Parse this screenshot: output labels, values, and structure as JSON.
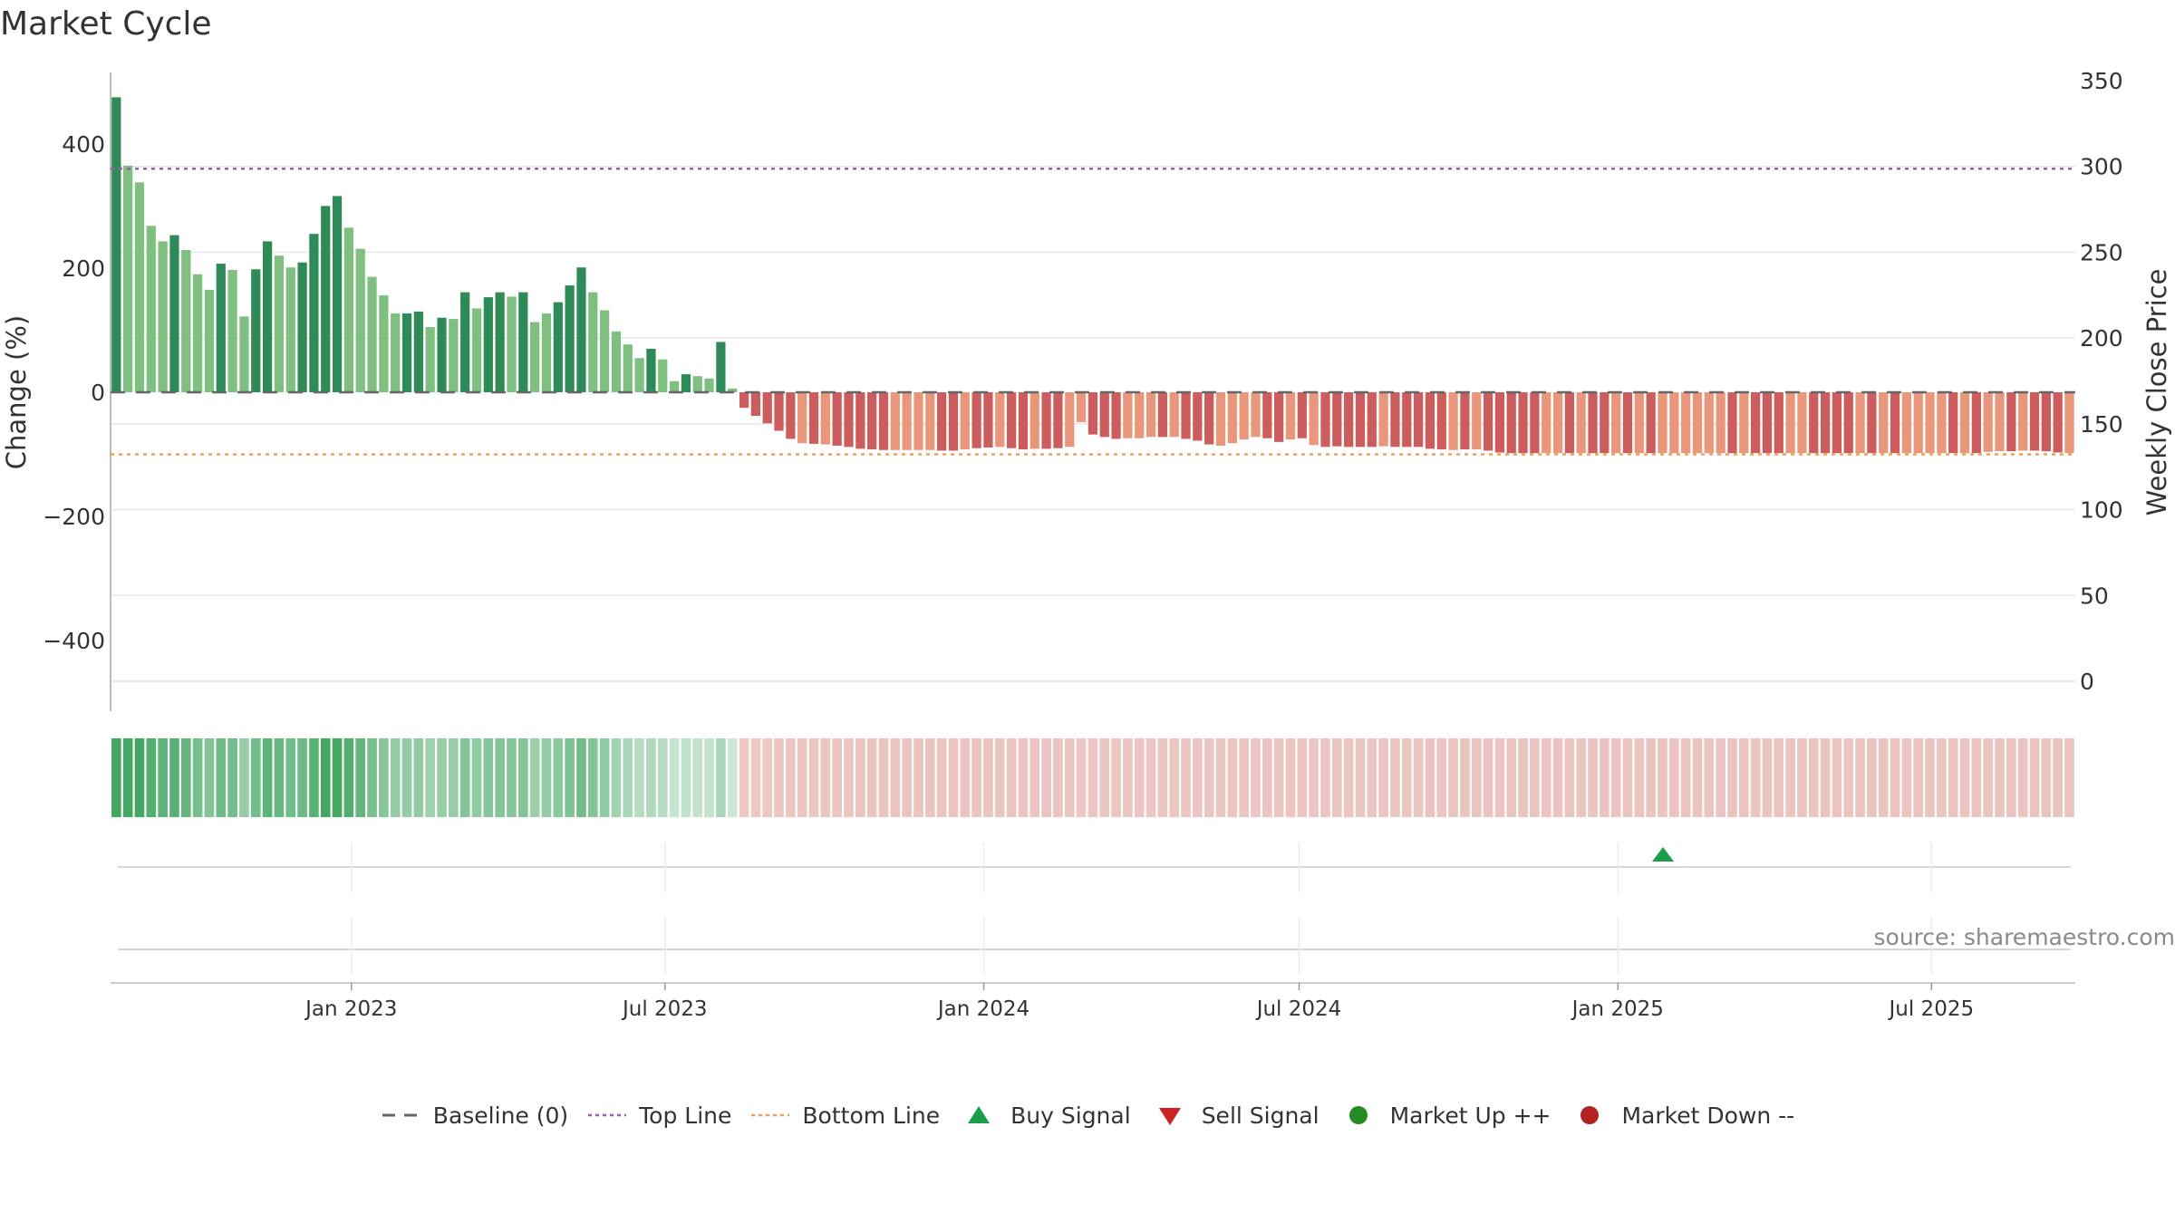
{
  "title": "Market Cycle",
  "source_note": "source: sharemaestro.com",
  "colors": {
    "strong_up": "#2e8b57",
    "up": "#7fbf7f",
    "strong_down": "#cd5c5c",
    "down": "#e9967a",
    "top_line": "#9b59b6",
    "bottom_line": "#f0a050",
    "baseline": "#666666",
    "buy": "#1a9e4a",
    "sell": "#cc2222",
    "market_up": "#228b22",
    "market_down": "#b22222"
  },
  "legend": [
    {
      "key": "baseline",
      "label": "Baseline (0)",
      "icon": "dash-line"
    },
    {
      "key": "top",
      "label": "Top Line",
      "icon": "dotted-purple-line"
    },
    {
      "key": "bottom",
      "label": "Bottom Line",
      "icon": "dotted-orange-line"
    },
    {
      "key": "buy",
      "label": "Buy Signal",
      "icon": "triangle-up"
    },
    {
      "key": "sell",
      "label": "Sell Signal",
      "icon": "triangle-down"
    },
    {
      "key": "mup",
      "label": "Market Up ++",
      "icon": "green-dot"
    },
    {
      "key": "mdown",
      "label": "Market Down --",
      "icon": "red-dot"
    }
  ],
  "chart_data": {
    "type": "bar",
    "title": "Market Cycle",
    "ylabel_left": "Change (%)",
    "ylabel_right": "Weekly Close Price",
    "ylim_left": [
      -520,
      520
    ],
    "ylim_right": [
      0,
      350
    ],
    "yticks_left": [
      400,
      200,
      0,
      -200,
      -400
    ],
    "yticks_left_labels": [
      "400",
      "200",
      "0",
      "−200",
      "−400"
    ],
    "yticks_right": [
      350,
      300,
      250,
      200,
      150,
      100,
      50,
      0
    ],
    "xtick_labels": [
      "Jan 2023",
      "Jul 2023",
      "Jan 2024",
      "Jul 2024",
      "Jan 2025",
      "Jul 2025"
    ],
    "xtick_dates": [
      "2023-01-01",
      "2023-07-01",
      "2024-01-01",
      "2024-07-01",
      "2025-01-01",
      "2025-07-01"
    ],
    "x_start": "2022-08-15",
    "x_end": "2025-09-22",
    "top_line": 360,
    "bottom_line": -100,
    "baseline": 0,
    "signals": [
      {
        "type": "buy",
        "date": "2025-01-27"
      }
    ],
    "week_bars": {
      "start": "2022-08-15",
      "values": [
        475,
        365,
        338,
        268,
        243,
        253,
        229,
        190,
        165,
        207,
        197,
        122,
        198,
        243,
        220,
        201,
        209,
        255,
        300,
        316,
        265,
        231,
        186,
        156,
        127,
        127,
        130,
        105,
        120,
        118,
        161,
        135,
        153,
        161,
        154,
        161,
        113,
        127,
        145,
        172,
        201,
        161,
        132,
        98,
        77,
        55,
        70,
        53,
        18,
        29,
        26,
        22,
        81,
        6,
        -25,
        -38,
        -50,
        -62,
        -75,
        -82,
        -83,
        -84,
        -86,
        -88,
        -91,
        -92,
        -93,
        -93,
        -93,
        -93,
        -93,
        -94,
        -94,
        -92,
        -90,
        -89,
        -88,
        -90,
        -92,
        -91,
        -91,
        -90,
        -88,
        -48,
        -68,
        -72,
        -75,
        -74,
        -74,
        -72,
        -72,
        -72,
        -75,
        -78,
        -84,
        -86,
        -82,
        -76,
        -72,
        -74,
        -80,
        -76,
        -74,
        -85,
        -88,
        -87,
        -88,
        -88,
        -88,
        -87,
        -88,
        -88,
        -88,
        -91,
        -92,
        -93,
        -92,
        -92,
        -94,
        -97,
        -98,
        -98,
        -98,
        -98,
        -98,
        -98,
        -98,
        -98,
        -98,
        -98,
        -98,
        -98,
        -98,
        -98,
        -98,
        -98,
        -98,
        -98,
        -98,
        -98,
        -98,
        -98,
        -98,
        -98,
        -98,
        -98,
        -98,
        -98,
        -98,
        -98,
        -98,
        -98,
        -98,
        -98,
        -98,
        -98,
        -98,
        -98,
        -98,
        -98,
        -98,
        -96,
        -95,
        -95,
        -94,
        -94,
        -95,
        -97,
        -98
      ],
      "strong": [
        1,
        0,
        0,
        0,
        0,
        1,
        0,
        0,
        0,
        1,
        0,
        0,
        1,
        1,
        0,
        0,
        1,
        1,
        1,
        1,
        0,
        0,
        0,
        0,
        0,
        1,
        1,
        0,
        1,
        0,
        1,
        0,
        1,
        1,
        0,
        1,
        0,
        0,
        1,
        1,
        1,
        0,
        0,
        0,
        0,
        0,
        1,
        0,
        0,
        1,
        0,
        0,
        1,
        0,
        1,
        1,
        1,
        1,
        1,
        0,
        1,
        0,
        1,
        1,
        1,
        1,
        1,
        0,
        0,
        0,
        0,
        1,
        1,
        0,
        1,
        1,
        0,
        1,
        1,
        0,
        1,
        1,
        0,
        0,
        1,
        1,
        1,
        0,
        0,
        0,
        1,
        0,
        1,
        1,
        1,
        0,
        0,
        0,
        0,
        1,
        1,
        0,
        1,
        0,
        1,
        1,
        1,
        1,
        1,
        0,
        1,
        1,
        1,
        1,
        1,
        0,
        1,
        0,
        1,
        1,
        1,
        1,
        1,
        0,
        0,
        1,
        0,
        1,
        1,
        0,
        1,
        0,
        1,
        0,
        0,
        0,
        0,
        0,
        0,
        1,
        0,
        1,
        1,
        1,
        0,
        0,
        1,
        1,
        1,
        1,
        0,
        1,
        0,
        1,
        0,
        0,
        0,
        0,
        1,
        0,
        1,
        0,
        0,
        1,
        0,
        1,
        1,
        1
      ]
    }
  }
}
